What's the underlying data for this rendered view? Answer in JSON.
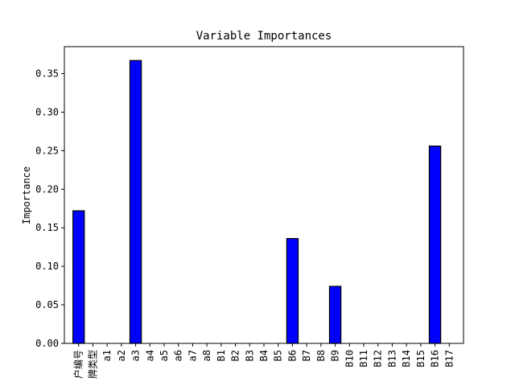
{
  "chart_data": {
    "type": "bar",
    "title": "Variable Importances",
    "xlabel": "",
    "ylabel": "Importance",
    "ylim": [
      0,
      0.385
    ],
    "yticks": [
      "0.00",
      "0.05",
      "0.10",
      "0.15",
      "0.20",
      "0.25",
      "0.30",
      "0.35"
    ],
    "grid": false,
    "bar_color": "#0000ff",
    "bar_edge_color": "#000000",
    "categories": [
      "户编号",
      "牌类型",
      "a1",
      "a2",
      "a3",
      "a4",
      "a5",
      "a6",
      "a7",
      "a8",
      "B1",
      "B2",
      "B3",
      "B4",
      "B5",
      "B6",
      "B7",
      "B8",
      "B9",
      "B10",
      "B11",
      "B12",
      "B13",
      "B14",
      "B15",
      "B16",
      "B17"
    ],
    "values": [
      0.172,
      0.0,
      0.0,
      0.0,
      0.367,
      0.0,
      0.0,
      0.0,
      0.0,
      0.0,
      0.0,
      0.0,
      0.0,
      0.0,
      0.0,
      0.136,
      0.0,
      0.0,
      0.074,
      0.0,
      0.0,
      0.0,
      0.0,
      0.0,
      0.0,
      0.256,
      0.0
    ]
  }
}
